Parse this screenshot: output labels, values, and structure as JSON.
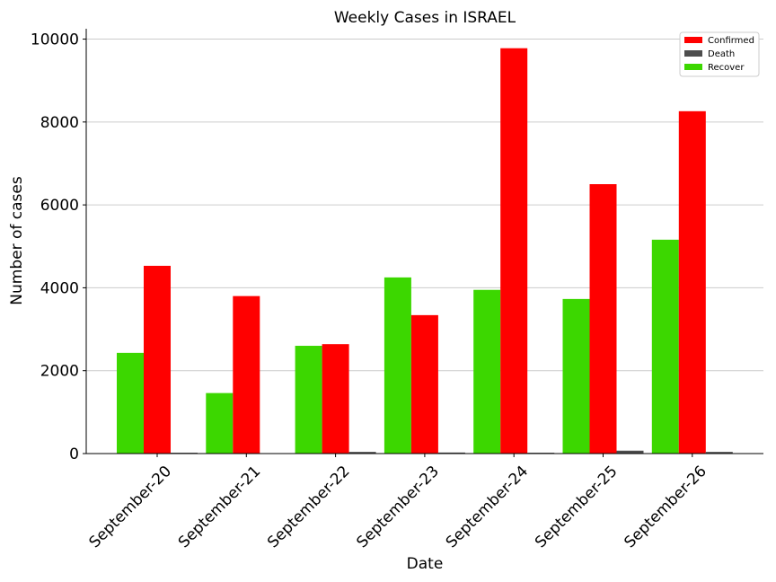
{
  "chart_data": {
    "type": "bar",
    "title": "Weekly Cases in ISRAEL",
    "xlabel": "Date",
    "ylabel": "Number of cases",
    "categories": [
      "September-20",
      "September-21",
      "September-22",
      "September-23",
      "September-24",
      "September-25",
      "September-26"
    ],
    "series": [
      {
        "name": "Recover",
        "color": "#3cd700",
        "values": [
          2430,
          1460,
          2600,
          4250,
          3950,
          3730,
          5160
        ]
      },
      {
        "name": "Confirmed",
        "color": "#ff0000",
        "values": [
          4530,
          3800,
          2640,
          3340,
          9780,
          6500,
          8260
        ]
      },
      {
        "name": "Death",
        "color": "#4d4d4d",
        "values": [
          20,
          10,
          40,
          25,
          20,
          70,
          40
        ]
      }
    ],
    "legend_order": [
      "Confirmed",
      "Death",
      "Recover"
    ],
    "legend_position": "top-right",
    "yticks": [
      0,
      2000,
      4000,
      6000,
      8000,
      10000
    ],
    "ylim": [
      0,
      10250
    ],
    "grid": "y"
  }
}
